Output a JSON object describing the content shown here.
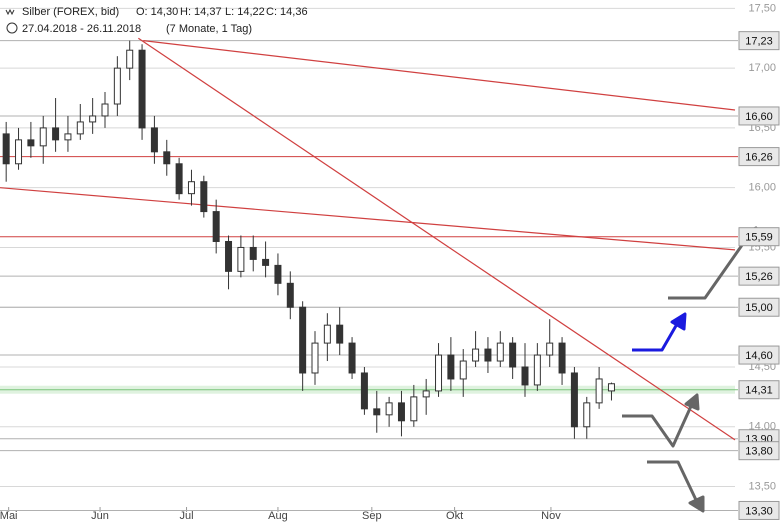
{
  "chart_data": {
    "type": "candlestick",
    "header": {
      "symbol": "Silber (FOREX, bid)",
      "open": "O: 14,30",
      "high": "H: 14,37",
      "low": "L: 14,22",
      "close": "C: 14,36",
      "range": "27.04.2018 - 26.11.2018",
      "duration": "(7 Monate, 1 Tag)"
    },
    "candles": {
      "open": [
        16.45,
        16.2,
        16.4,
        16.35,
        16.5,
        16.4,
        16.45,
        16.55,
        16.6,
        16.7,
        17.0,
        17.15,
        16.5,
        16.3,
        16.2,
        15.95,
        16.05,
        15.8,
        15.55,
        15.3,
        15.5,
        15.4,
        15.35,
        15.2,
        15.0,
        14.45,
        14.7,
        14.85,
        14.7,
        14.45,
        14.15,
        14.1,
        14.2,
        14.05,
        14.25,
        14.3,
        14.6,
        14.4,
        14.55,
        14.65,
        14.55,
        14.7,
        14.5,
        14.35,
        14.6,
        14.7,
        14.45,
        14.0,
        14.2,
        14.3
      ],
      "high": [
        16.55,
        16.5,
        16.55,
        16.6,
        16.75,
        16.6,
        16.7,
        16.75,
        16.8,
        17.1,
        17.23,
        17.2,
        16.6,
        16.4,
        16.25,
        16.15,
        16.1,
        15.9,
        15.6,
        15.6,
        15.6,
        15.55,
        15.45,
        15.3,
        15.05,
        14.8,
        14.95,
        15.0,
        14.75,
        14.5,
        14.3,
        14.25,
        14.3,
        14.35,
        14.4,
        14.7,
        14.75,
        14.65,
        14.8,
        14.75,
        14.8,
        14.75,
        14.7,
        14.7,
        14.9,
        14.75,
        14.5,
        14.25,
        14.5,
        14.37
      ],
      "low": [
        16.05,
        16.15,
        16.25,
        16.2,
        16.3,
        16.3,
        16.4,
        16.45,
        16.5,
        16.6,
        16.9,
        16.4,
        16.2,
        16.1,
        15.9,
        15.85,
        15.75,
        15.45,
        15.15,
        15.25,
        15.3,
        15.25,
        15.1,
        14.9,
        14.3,
        14.35,
        14.55,
        14.6,
        14.4,
        14.1,
        13.95,
        14.0,
        13.92,
        14.0,
        14.1,
        14.25,
        14.3,
        14.25,
        14.5,
        14.45,
        14.5,
        14.4,
        14.25,
        14.3,
        14.5,
        14.35,
        13.9,
        13.9,
        14.15,
        14.22
      ],
      "close": [
        16.2,
        16.4,
        16.35,
        16.5,
        16.4,
        16.45,
        16.55,
        16.6,
        16.7,
        17.0,
        17.15,
        16.5,
        16.3,
        16.2,
        15.95,
        16.05,
        15.8,
        15.55,
        15.3,
        15.5,
        15.4,
        15.35,
        15.2,
        15.0,
        14.45,
        14.7,
        14.85,
        14.7,
        14.45,
        14.15,
        14.1,
        14.2,
        14.05,
        14.25,
        14.3,
        14.6,
        14.4,
        14.55,
        14.65,
        14.55,
        14.7,
        14.5,
        14.35,
        14.6,
        14.7,
        14.45,
        14.0,
        14.2,
        14.4,
        14.36
      ]
    },
    "xlim": [
      -0.5,
      59
    ],
    "xticks": [
      {
        "value": 0.2,
        "label": "Mai"
      },
      {
        "value": 7.6,
        "label": "Jun"
      },
      {
        "value": 14.6,
        "label": "Jul"
      },
      {
        "value": 22,
        "label": "Aug"
      },
      {
        "value": 29.6,
        "label": "Sep"
      },
      {
        "value": 36.3,
        "label": "Okt"
      },
      {
        "value": 44.1,
        "label": "Nov"
      }
    ],
    "ylim": [
      13.17,
      17.57
    ],
    "yticks": [
      {
        "value": 17.5,
        "label": "17,50"
      },
      {
        "value": 17,
        "label": "17,00"
      },
      {
        "value": 16.5,
        "label": "16,50"
      },
      {
        "value": 16,
        "label": "16,00"
      },
      {
        "value": 15.5,
        "label": "15,50"
      },
      {
        "value": 15,
        "label": "15,00"
      },
      {
        "value": 14.5,
        "label": "14,50"
      },
      {
        "value": 14,
        "label": "14,00"
      },
      {
        "value": 13.5,
        "label": "13,50"
      }
    ],
    "levels": [
      {
        "value": 17.23,
        "label": "17,23",
        "color": "#b0b0b0"
      },
      {
        "value": 16.6,
        "label": "16,60",
        "color": "#b0b0b0"
      },
      {
        "value": 16.26,
        "label": "16,26",
        "color": "#d04040"
      },
      {
        "value": 15.59,
        "label": "15,59",
        "color": "#d04040"
      },
      {
        "value": 15.26,
        "label": "15,26",
        "color": "#b0b0b0"
      },
      {
        "value": 15,
        "label": "15,00",
        "color": "#b0b0b0"
      },
      {
        "value": 14.6,
        "label": "14,60",
        "color": "#b0b0b0"
      },
      {
        "value": 14.31,
        "label": "14,31",
        "color": "#7cc47c"
      },
      {
        "value": 13.9,
        "label": "13,90",
        "color": "#b0b0b0"
      },
      {
        "value": 13.8,
        "label": "13,80",
        "color": "#b0b0b0"
      },
      {
        "value": 13.3,
        "label": "13,30",
        "color": "#b0b0b0"
      }
    ],
    "trendlines": [
      {
        "x": [
          11.1,
          59
        ],
        "y": [
          17.23,
          16.65
        ],
        "color": "#d04040"
      },
      {
        "x": [
          -0.5,
          59
        ],
        "y": [
          16.0,
          15.48
        ],
        "color": "#d04040"
      },
      {
        "x": [
          10.7,
          59
        ],
        "y": [
          17.25,
          13.89
        ],
        "color": "#d04040"
      }
    ]
  }
}
